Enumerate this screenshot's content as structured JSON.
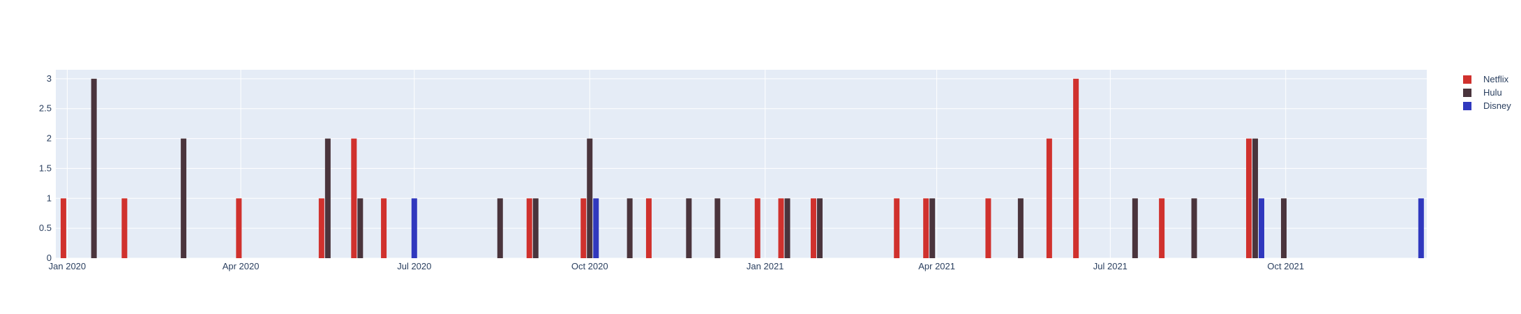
{
  "chart_data": {
    "type": "bar",
    "barmode": "group",
    "title": "",
    "xlabel": "",
    "ylabel": "",
    "ylim": [
      0,
      3.15
    ],
    "xlim": [
      "2019-12-26",
      "2021-12-14"
    ],
    "yticks": [
      {
        "value": 0,
        "label": "0"
      },
      {
        "value": 0.5,
        "label": "0.5"
      },
      {
        "value": 1,
        "label": "1"
      },
      {
        "value": 1.5,
        "label": "1.5"
      },
      {
        "value": 2,
        "label": "2"
      },
      {
        "value": 2.5,
        "label": "2.5"
      },
      {
        "value": 3,
        "label": "3"
      }
    ],
    "xticks": [
      {
        "date": "2020-01-01",
        "label": "Jan 2020"
      },
      {
        "date": "2020-04-01",
        "label": "Apr 2020"
      },
      {
        "date": "2020-07-01",
        "label": "Jul 2020"
      },
      {
        "date": "2020-10-01",
        "label": "Oct 2020"
      },
      {
        "date": "2021-01-01",
        "label": "Jan 2021"
      },
      {
        "date": "2021-04-01",
        "label": "Apr 2021"
      },
      {
        "date": "2021-07-01",
        "label": "Jul 2021"
      },
      {
        "date": "2021-10-01",
        "label": "Oct 2021"
      }
    ],
    "grid": true,
    "legend_position": "top-right",
    "series": [
      {
        "name": "Netflix",
        "color": "#d0312d",
        "points": [
          {
            "x": "2019-12-30",
            "y": 1
          },
          {
            "x": "2020-01-31",
            "y": 1
          },
          {
            "x": "2020-03-31",
            "y": 1
          },
          {
            "x": "2020-05-15",
            "y": 1
          },
          {
            "x": "2020-06-01",
            "y": 2
          },
          {
            "x": "2020-06-15",
            "y": 1
          },
          {
            "x": "2020-09-01",
            "y": 1
          },
          {
            "x": "2020-10-01",
            "y": 1
          },
          {
            "x": "2020-11-01",
            "y": 1
          },
          {
            "x": "2020-12-28",
            "y": 1
          },
          {
            "x": "2021-01-11",
            "y": 1
          },
          {
            "x": "2021-01-28",
            "y": 1
          },
          {
            "x": "2021-03-11",
            "y": 1
          },
          {
            "x": "2021-03-28",
            "y": 1
          },
          {
            "x": "2021-04-28",
            "y": 1
          },
          {
            "x": "2021-05-30",
            "y": 2
          },
          {
            "x": "2021-06-13",
            "y": 3
          },
          {
            "x": "2021-07-28",
            "y": 1
          },
          {
            "x": "2021-09-15",
            "y": 2
          }
        ]
      },
      {
        "name": "Hulu",
        "color": "#4a343c",
        "points": [
          {
            "x": "2020-01-15",
            "y": 3
          },
          {
            "x": "2020-03-02",
            "y": 2
          },
          {
            "x": "2020-05-15",
            "y": 2
          },
          {
            "x": "2020-06-01",
            "y": 1
          },
          {
            "x": "2020-08-15",
            "y": 1
          },
          {
            "x": "2020-09-01",
            "y": 1
          },
          {
            "x": "2020-10-01",
            "y": 2
          },
          {
            "x": "2020-10-22",
            "y": 1
          },
          {
            "x": "2020-11-22",
            "y": 1
          },
          {
            "x": "2020-12-07",
            "y": 1
          },
          {
            "x": "2021-01-11",
            "y": 1
          },
          {
            "x": "2021-01-28",
            "y": 1
          },
          {
            "x": "2021-03-28",
            "y": 1
          },
          {
            "x": "2021-05-15",
            "y": 1
          },
          {
            "x": "2021-07-14",
            "y": 1
          },
          {
            "x": "2021-08-14",
            "y": 1
          },
          {
            "x": "2021-09-15",
            "y": 2
          },
          {
            "x": "2021-09-30",
            "y": 1
          }
        ]
      },
      {
        "name": "Disney",
        "color": "#3038be",
        "points": [
          {
            "x": "2020-07-01",
            "y": 1
          },
          {
            "x": "2020-10-01",
            "y": 1
          },
          {
            "x": "2021-09-15",
            "y": 1
          },
          {
            "x": "2021-12-11",
            "y": 1
          }
        ]
      }
    ]
  }
}
